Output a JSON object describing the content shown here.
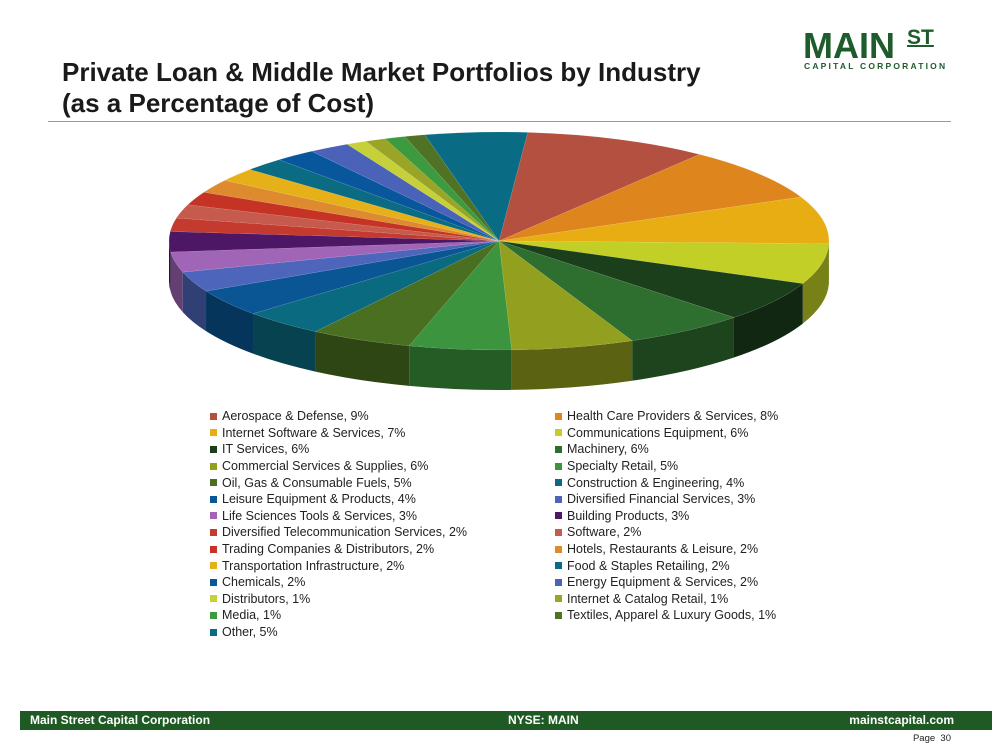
{
  "slide": {
    "title_line1": "Private Loan & Middle Market Portfolios by Industry",
    "title_line2": "(as a Percentage of Cost)"
  },
  "logo": {
    "main": "MAIN",
    "superscript": "ST",
    "subtitle": "CAPITAL CORPORATION"
  },
  "footer": {
    "company": "Main Street Capital Corporation",
    "ticker": "NYSE: MAIN",
    "website": "mainstcapital.com",
    "page_label": "Page",
    "page_number": "30"
  },
  "colors": {
    "brand_green": "#1e5c2c",
    "footer_green": "#1f5a24"
  },
  "chart_data": {
    "type": "pie",
    "style": "3d-tilted",
    "legend_placement": "bottom",
    "slices": [
      {
        "label": "Aerospace & Defense, 9%",
        "value": 9,
        "color": "#b3503f"
      },
      {
        "label": "Health Care Providers & Services, 8%",
        "value": 8,
        "color": "#de861d"
      },
      {
        "label": "Internet Software & Services, 7%",
        "value": 7,
        "color": "#e8ad12"
      },
      {
        "label": "Communications Equipment, 6%",
        "value": 6,
        "color": "#c2cf26"
      },
      {
        "label": "IT Services, 6%",
        "value": 6,
        "color": "#1b3f1b"
      },
      {
        "label": "Machinery, 6%",
        "value": 6,
        "color": "#2e6e2e"
      },
      {
        "label": "Commercial Services & Supplies, 6%",
        "value": 6,
        "color": "#93a01f"
      },
      {
        "label": "Specialty Retail, 5%",
        "value": 5,
        "color": "#3c953e"
      },
      {
        "label": "Oil, Gas & Consumable Fuels, 5%",
        "value": 5,
        "color": "#4a6f21"
      },
      {
        "label": "Construction & Engineering, 4%",
        "value": 4,
        "color": "#0a6a80"
      },
      {
        "label": "Leisure Equipment & Products, 4%",
        "value": 4,
        "color": "#0a5594"
      },
      {
        "label": "Diversified Financial Services, 3%",
        "value": 3,
        "color": "#4d66bb"
      },
      {
        "label": "Life Sciences Tools & Services, 3%",
        "value": 3,
        "color": "#a165b8"
      },
      {
        "label": "Building Products, 3%",
        "value": 3,
        "color": "#4e1766"
      },
      {
        "label": "Diversified Telecommunication Services, 2%",
        "value": 2,
        "color": "#c43a2f"
      },
      {
        "label": "Software, 2%",
        "value": 2,
        "color": "#c65a4c"
      },
      {
        "label": "Trading Companies & Distributors, 2%",
        "value": 2,
        "color": "#c53325"
      },
      {
        "label": "Hotels, Restaurants & Leisure, 2%",
        "value": 2,
        "color": "#de8a2f"
      },
      {
        "label": "Transportation Infrastructure, 2%",
        "value": 2,
        "color": "#e6b018"
      },
      {
        "label": "Food & Staples Retailing, 2%",
        "value": 2,
        "color": "#0b6b82"
      },
      {
        "label": "Chemicals, 2%",
        "value": 2,
        "color": "#08579c"
      },
      {
        "label": "Energy Equipment & Services, 2%",
        "value": 2,
        "color": "#4a62b8"
      },
      {
        "label": "Distributors, 1%",
        "value": 1,
        "color": "#c6d13a"
      },
      {
        "label": "Internet & Catalog Retail, 1%",
        "value": 1,
        "color": "#9aa527"
      },
      {
        "label": "Media, 1%",
        "value": 1,
        "color": "#3e9a3f"
      },
      {
        "label": "Textiles, Apparel & Luxury Goods, 1%",
        "value": 1,
        "color": "#4f7224"
      },
      {
        "label": "Other, 5%",
        "value": 5,
        "color": "#0a6c84"
      }
    ]
  }
}
